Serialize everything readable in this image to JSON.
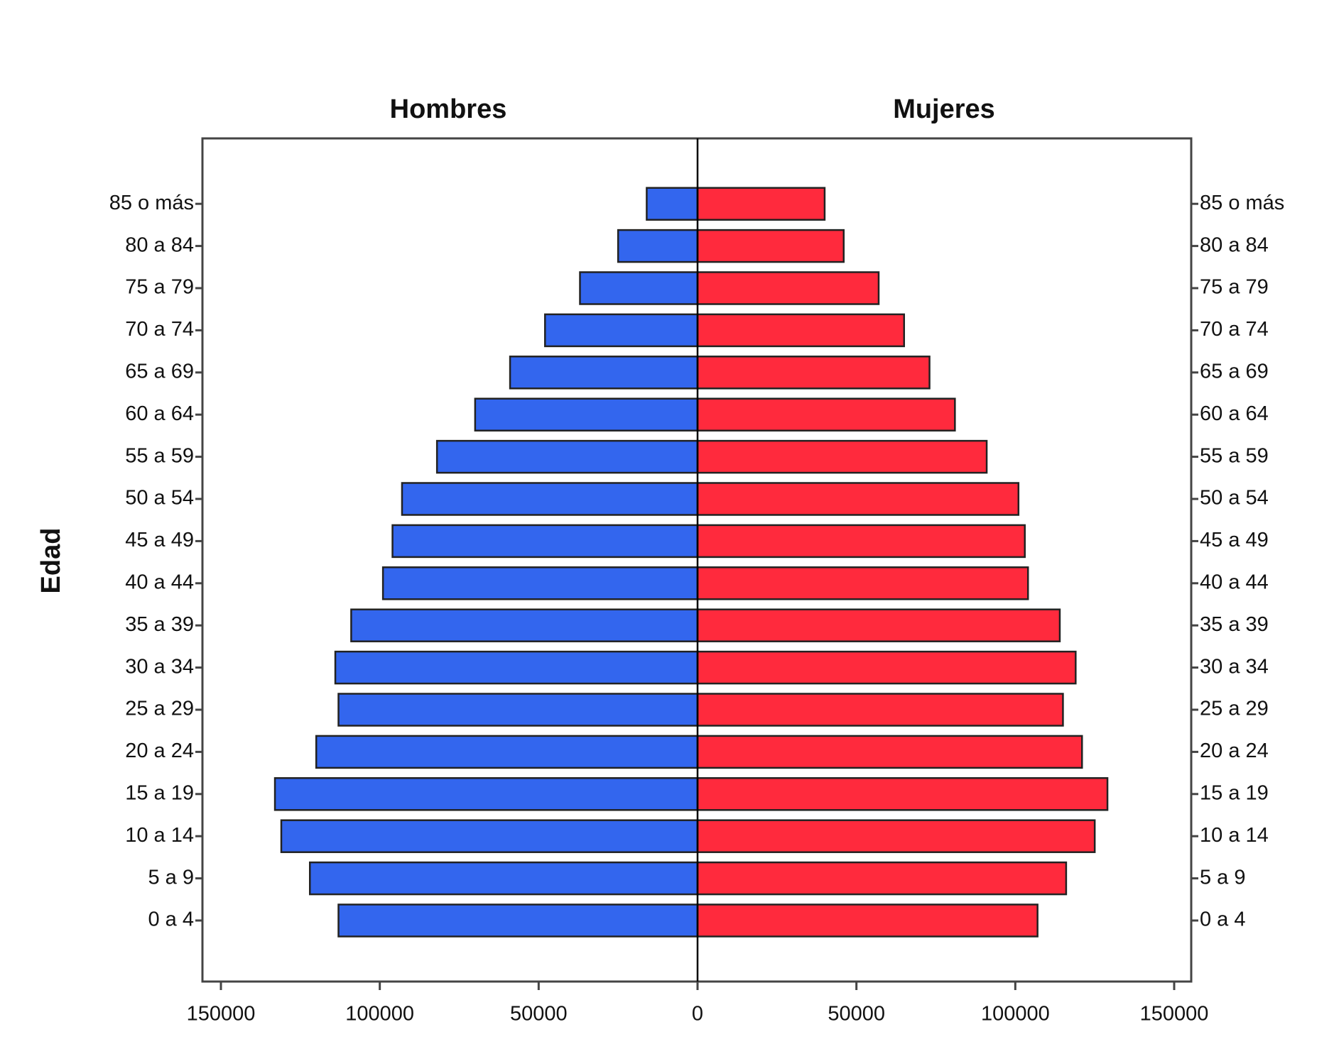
{
  "chart_data": {
    "type": "pyramid",
    "ylabel": "Edad",
    "categories": [
      "0 a 4",
      "5 a 9",
      "10 a 14",
      "15 a 19",
      "20 a 24",
      "25 a 29",
      "30 a 34",
      "35 a 39",
      "40 a 44",
      "45 a 49",
      "50 a 54",
      "55 a 59",
      "60 a 64",
      "65 a 69",
      "70 a 74",
      "75 a 79",
      "80 a 84",
      "85 o más"
    ],
    "series": [
      {
        "name": "Hombres",
        "color": "#3366ee",
        "values": [
          113000,
          122000,
          131000,
          133000,
          120000,
          113000,
          114000,
          109000,
          99000,
          96000,
          93000,
          82000,
          70000,
          59000,
          48000,
          37000,
          25000,
          16000
        ]
      },
      {
        "name": "Mujeres",
        "color": "#ff2a3d",
        "values": [
          107000,
          116000,
          125000,
          129000,
          121000,
          115000,
          119000,
          114000,
          104000,
          103000,
          101000,
          91000,
          81000,
          73000,
          65000,
          57000,
          46000,
          40000
        ]
      }
    ],
    "xlim": [
      0,
      150000
    ],
    "xticks": [
      0,
      50000,
      100000,
      150000
    ]
  }
}
